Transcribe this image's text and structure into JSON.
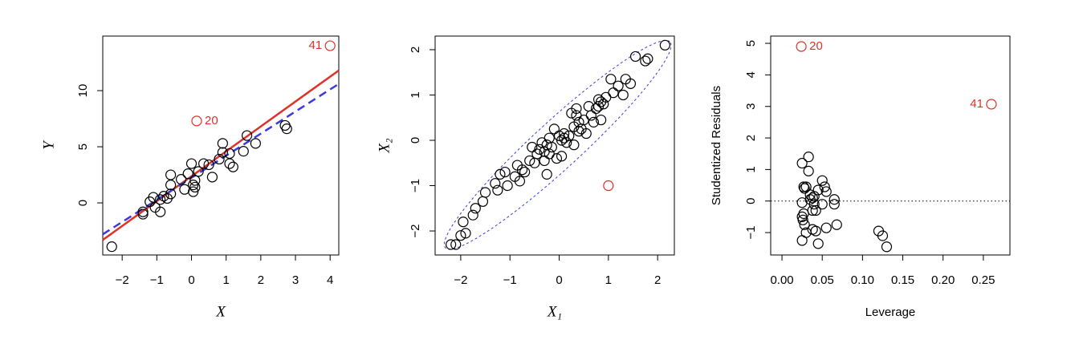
{
  "chart_data": [
    {
      "type": "scatter",
      "xlabel": "X",
      "ylabel": "Y",
      "xlim": [
        -2.56,
        4.25
      ],
      "ylim": [
        -4.64,
        14.86
      ],
      "xticks": [
        {
          "value": -2,
          "label": "−2"
        },
        {
          "value": -1,
          "label": "−1"
        },
        0,
        1,
        2,
        3,
        4
      ],
      "yticks": [
        0,
        5,
        10
      ],
      "series": [
        {
          "color": "#000000",
          "x": [
            -2.3,
            -1.4,
            -1.4,
            -1.2,
            -1.1,
            -1.05,
            -0.9,
            -0.9,
            -0.8,
            -0.7,
            -0.6,
            -0.6,
            -0.6,
            -0.3,
            -0.2,
            -0.1,
            0,
            0.05,
            0.05,
            0.1,
            0.1,
            0.2,
            0.35,
            0.5,
            0.6,
            0.8,
            0.9,
            0.9,
            1.1,
            1.1,
            1.2,
            1.5,
            1.6,
            1.85,
            2.7,
            2.75
          ],
          "values": [
            -3.9,
            -1.0,
            -0.8,
            0.1,
            0.5,
            -0.4,
            -0.8,
            0.3,
            0.6,
            0.4,
            0.8,
            2.5,
            1.6,
            2.1,
            1.2,
            2.6,
            3.5,
            1.6,
            1.0,
            2.0,
            1.4,
            2.8,
            3.5,
            3.4,
            2.3,
            3.9,
            5.3,
            4.5,
            4.4,
            3.5,
            3.2,
            4.6,
            6.0,
            5.3,
            6.9,
            6.6
          ]
        },
        {
          "color": "#e0302a",
          "x": [
            0.15,
            4.0
          ],
          "values": [
            7.3,
            14.0
          ],
          "labels": [
            "20",
            "41"
          ]
        }
      ],
      "fits": [
        {
          "color": "#e0302a",
          "dashed": false,
          "x": [
            -2.56,
            4.25
          ],
          "values": [
            -3.3,
            11.8
          ]
        },
        {
          "color": "#3a3ae0",
          "dashed": true,
          "x": [
            -2.56,
            4.25
          ],
          "values": [
            -2.8,
            10.6
          ]
        }
      ]
    },
    {
      "type": "scatter",
      "xlabel": "X₁",
      "ylabel": "X₂",
      "xlim": [
        -2.52,
        2.34
      ],
      "ylim": [
        -2.53,
        2.3
      ],
      "xticks": [
        {
          "value": -2,
          "label": "−2"
        },
        {
          "value": -1,
          "label": "−1"
        },
        0,
        1,
        2
      ],
      "yticks": [
        {
          "value": -2,
          "label": "−2"
        },
        {
          "value": -1,
          "label": "−1"
        },
        0,
        1,
        2
      ],
      "series": [
        {
          "color": "#000000",
          "x": [
            -2.2,
            -2.1,
            -2.0,
            -1.9,
            -1.95,
            -1.75,
            -1.7,
            -1.55,
            -1.5,
            -1.3,
            -1.25,
            -1.2,
            -1.1,
            -1.05,
            -0.9,
            -0.85,
            -0.8,
            -0.75,
            -0.7,
            -0.6,
            -0.55,
            -0.5,
            -0.45,
            -0.4,
            -0.35,
            -0.3,
            -0.3,
            -0.25,
            -0.25,
            -0.2,
            -0.2,
            -0.15,
            -0.1,
            -0.05,
            0.0,
            0.05,
            0.05,
            0.1,
            0.1,
            0.15,
            0.2,
            0.25,
            0.3,
            0.3,
            0.35,
            0.35,
            0.4,
            0.4,
            0.45,
            0.5,
            0.55,
            0.6,
            0.65,
            0.7,
            0.75,
            0.8,
            0.8,
            0.85,
            0.9,
            0.85,
            0.95,
            1.05,
            1.1,
            1.2,
            1.3,
            1.35,
            1.45,
            1.55,
            1.75,
            1.8,
            2.15
          ],
          "values": [
            -2.3,
            -2.3,
            -2.1,
            -2.05,
            -1.8,
            -1.65,
            -1.5,
            -1.35,
            -1.15,
            -0.95,
            -1.1,
            -0.75,
            -0.7,
            -1.0,
            -0.8,
            -0.55,
            -0.9,
            -0.65,
            -0.7,
            -0.45,
            -0.15,
            -0.5,
            -0.3,
            -0.2,
            -0.05,
            -0.25,
            -0.45,
            -0.1,
            -0.75,
            0.05,
            -0.3,
            -0.15,
            0.25,
            -0.4,
            0.1,
            0.0,
            -0.35,
            0.15,
            0.05,
            -0.05,
            0.1,
            0.6,
            0.3,
            -0.1,
            0.55,
            0.7,
            0.4,
            0.2,
            0.25,
            0.45,
            0.15,
            0.75,
            0.55,
            0.4,
            0.7,
            0.9,
            0.75,
            0.85,
            0.8,
            0.45,
            0.95,
            1.35,
            1.05,
            1.2,
            1.0,
            1.35,
            1.25,
            1.85,
            1.75,
            1.8,
            2.1
          ]
        },
        {
          "color": "#e0302a",
          "x": [
            1.0
          ],
          "values": [
            -1.0
          ]
        }
      ],
      "ellipse": {
        "color": "#3a3ae0",
        "center": [
          -0.03,
          -0.1
        ],
        "semi_major": 3.22,
        "semi_minor": 0.5,
        "angle": 45
      }
    },
    {
      "type": "scatter",
      "xlabel": "Leverage",
      "ylabel": "Studentized Residuals",
      "xlim": [
        -0.014,
        0.283
      ],
      "ylim": [
        -1.71,
        5.23
      ],
      "xticks": [
        {
          "value": 0,
          "label": "0.00"
        },
        {
          "value": 0.05,
          "label": "0.05"
        },
        {
          "value": 0.1,
          "label": "0.10"
        },
        {
          "value": 0.15,
          "label": "0.15"
        },
        {
          "value": 0.2,
          "label": "0.20"
        },
        {
          "value": 0.25,
          "label": "0.25"
        }
      ],
      "yticks": [
        {
          "value": -1,
          "label": "−1"
        },
        0,
        1,
        2,
        3,
        4,
        5
      ],
      "hline": {
        "value": 0,
        "color": "#000000"
      },
      "series": [
        {
          "color": "#000000",
          "x": [
            0.025,
            0.027,
            0.028,
            0.03,
            0.025,
            0.027,
            0.025,
            0.026,
            0.028,
            0.025,
            0.03,
            0.033,
            0.033,
            0.035,
            0.035,
            0.038,
            0.04,
            0.04,
            0.038,
            0.042,
            0.045,
            0.042,
            0.038,
            0.045,
            0.05,
            0.053,
            0.055,
            0.055,
            0.05,
            0.065,
            0.065,
            0.068,
            0.12,
            0.125,
            0.13
          ],
          "values": [
            1.2,
            0.45,
            0.4,
            0.45,
            -0.05,
            -0.4,
            -0.5,
            -0.6,
            -0.75,
            -1.25,
            -1.0,
            1.4,
            0.95,
            0.2,
            0.05,
            0.1,
            0.15,
            -0.1,
            -0.3,
            -0.3,
            0.35,
            -0.95,
            -0.9,
            -1.35,
            0.65,
            0.45,
            0.3,
            -0.85,
            -0.1,
            0.05,
            -0.1,
            -0.75,
            -0.95,
            -1.1,
            -1.45
          ]
        },
        {
          "color": "#e0302a",
          "x": [
            0.024,
            0.26
          ],
          "values": [
            4.9,
            3.07
          ],
          "labels": [
            "20",
            "41"
          ]
        }
      ]
    }
  ]
}
